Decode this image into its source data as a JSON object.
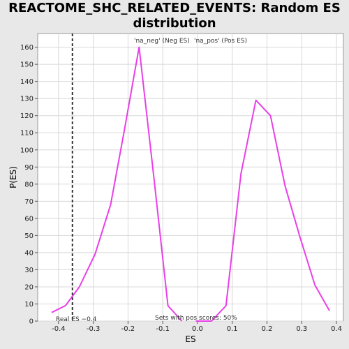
{
  "chart_data": {
    "type": "line",
    "title_line1": "REACTOME_SHC_RELATED_EVENTS: Random ES",
    "title_line2": "distribution",
    "xlabel": "ES",
    "ylabel": "P(ES)",
    "xlim": [
      -0.46,
      0.42
    ],
    "ylim": [
      0,
      168
    ],
    "x_ticks": [
      -0.4,
      -0.3,
      -0.2,
      -0.1,
      0.0,
      0.1,
      0.2,
      0.3,
      0.4
    ],
    "x_tick_labels": [
      "-0.4",
      "-0.3",
      "-0.2",
      "-0.1",
      "0.0",
      "0.1",
      "0.2",
      "0.3",
      "0.4"
    ],
    "y_ticks": [
      0,
      10,
      20,
      30,
      40,
      50,
      60,
      70,
      80,
      90,
      100,
      110,
      120,
      130,
      140,
      150,
      160
    ],
    "grid": true,
    "legend_position": "top",
    "series": [
      {
        "name": "'na_neg' (Neg ES)",
        "color": "#e93fe9",
        "legend_color": "#3a3ad8",
        "x": [
          -0.42,
          -0.38,
          -0.34,
          -0.295,
          -0.25,
          -0.21,
          -0.168,
          -0.125,
          -0.085,
          -0.045
        ],
        "y": [
          5,
          9,
          20,
          39,
          68,
          112,
          160,
          83,
          9,
          0
        ]
      },
      {
        "name": "'na_pos' (Pos ES)",
        "color": "#e93fe9",
        "legend_color": "#e04040",
        "x": [
          -0.005,
          0.04,
          0.082,
          0.125,
          0.168,
          0.21,
          0.252,
          0.295,
          0.338,
          0.38
        ],
        "y": [
          0,
          0,
          9,
          86,
          129,
          120,
          79,
          49,
          21,
          6
        ]
      }
    ],
    "real_es": {
      "value": -0.36,
      "label": "Real ES −0.4"
    },
    "annotation": "Sets with pos scores: 50%"
  }
}
